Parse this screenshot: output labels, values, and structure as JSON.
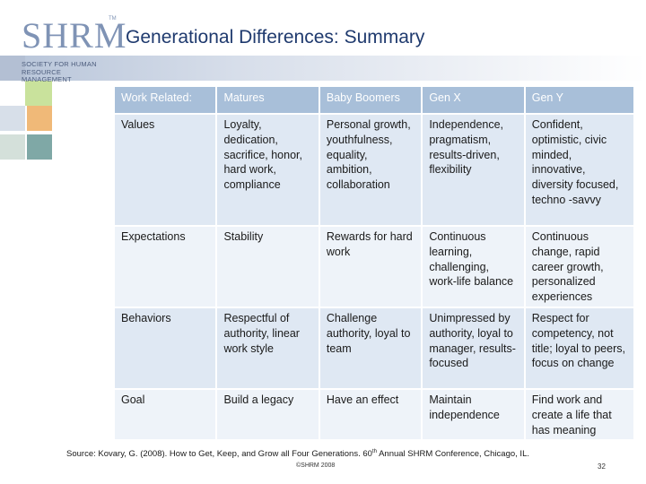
{
  "logo": {
    "name": "SHRM",
    "tm": "TM",
    "subtitle": "SOCIETY FOR HUMAN RESOURCE MANAGEMENT"
  },
  "title": "Generational Differences: Summary",
  "table": {
    "headers": [
      "Work Related:",
      "Matures",
      "Baby Boomers",
      "Gen X",
      "Gen Y"
    ],
    "rows": [
      [
        "Values",
        "Loyalty, dedication, sacrifice, honor, hard work, compliance",
        "Personal growth, youthfulness, equality, ambition, collaboration",
        "Independence, pragmatism, results-driven, flexibility",
        "Confident, optimistic, civic minded, innovative, diversity focused, techno -savvy"
      ],
      [
        "Expectations",
        "Stability",
        "Rewards for hard work",
        "Continuous learning, challenging, work-life balance",
        "Continuous change, rapid career growth, personalized experiences"
      ],
      [
        "Behaviors",
        "Respectful of authority, linear work style",
        "Challenge authority, loyal to team",
        "Unimpressed by authority, loyal to manager, results-focused",
        "Respect for competency, not title; loyal to peers, focus on change"
      ],
      [
        "Goal",
        "Build a legacy",
        "Have an effect",
        "Maintain independence",
        "Find work and create a life that has meaning"
      ]
    ]
  },
  "footer": {
    "source_before": "Source: Kovary, G. (2008). How to Get, Keep, and Grow all Four Generations. 60",
    "source_sup": "th",
    "source_after": " Annual SHRM Conference, Chicago, IL.",
    "copyright": "©SHRM 2008",
    "page_number": "32"
  },
  "colors": {
    "title": "#1f3a6e",
    "header_row": "#a8bfd9",
    "row_odd": "#dfe8f3",
    "row_even": "#eef3f9"
  }
}
